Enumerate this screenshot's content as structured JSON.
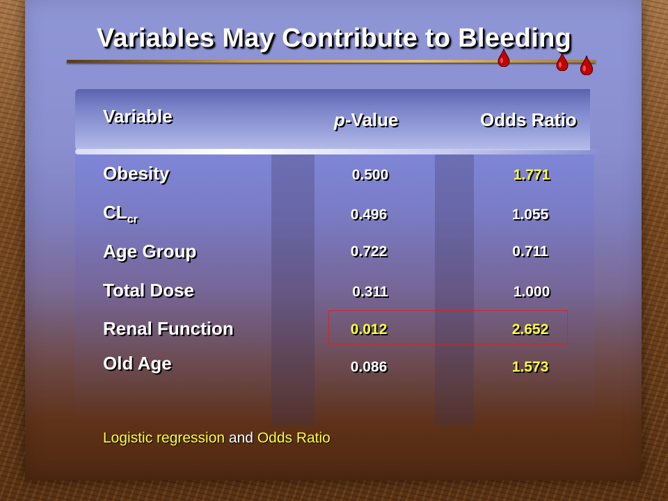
{
  "title": "Variables May Contribute to Bleeding",
  "header": {
    "variable": "Variable",
    "p_value_italic": "p",
    "p_value_rest": "-Value",
    "odds_ratio": "Odds Ratio"
  },
  "rows": [
    {
      "label": "Obesity",
      "p_value": "0.500",
      "odds_ratio": "1.771",
      "odds_color": "yellow"
    },
    {
      "label": "CL",
      "label_sub": "cr",
      "p_value": "0.496",
      "odds_ratio": "1.055",
      "odds_color": "white"
    },
    {
      "label": "Age Group",
      "p_value": "0.722",
      "odds_ratio": "0.711",
      "odds_color": "white"
    },
    {
      "label": "Total Dose",
      "p_value": "0.311",
      "odds_ratio": "1.000",
      "odds_color": "white"
    },
    {
      "label": "Renal Function",
      "p_value": "0.012",
      "odds_ratio": "2.652",
      "p_color": "yellow",
      "odds_color": "yellow",
      "highlighted": true
    },
    {
      "label": "Old Age",
      "p_value": "0.086",
      "odds_ratio": "1.573",
      "odds_color": "yellow"
    }
  ],
  "footnote": {
    "part1": "Logistic regression",
    "part2": " and ",
    "part3": "Odds Ratio"
  },
  "colors": {
    "highlight_text": "#ffff33",
    "normal_text": "#ffffff",
    "highlight_box": "#e02020",
    "blood_drop": "#c40000"
  }
}
